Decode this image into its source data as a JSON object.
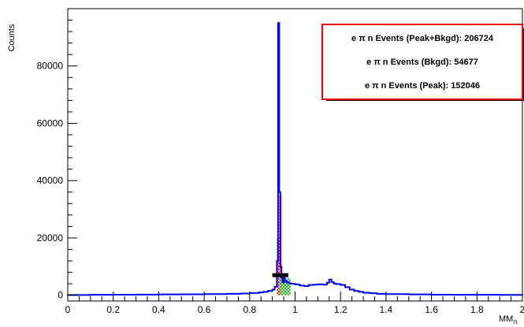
{
  "chart_data": {
    "type": "histogram",
    "title": "",
    "xlabel": "MM",
    "xlabel_subscript": "π",
    "ylabel": "Counts",
    "xlim": [
      0,
      2
    ],
    "ylim": [
      -2000,
      100000
    ],
    "x_ticks": [
      0,
      0.2,
      0.4,
      0.6,
      0.8,
      1,
      1.2,
      1.4,
      1.6,
      1.8,
      2
    ],
    "x_tick_labels": [
      "0",
      "0.2",
      "0.4",
      "0.6",
      "0.8",
      "1",
      "1.2",
      "1.4",
      "1.6",
      "1.8",
      "2"
    ],
    "y_ticks": [
      0,
      20000,
      40000,
      60000,
      80000
    ],
    "y_tick_labels": [
      "0",
      "20000",
      "40000",
      "60000",
      "80000"
    ],
    "grid": false,
    "series": [
      {
        "kind": "step-outline",
        "color": "#0000ee",
        "x": [
          0.0,
          0.1,
          0.2,
          0.3,
          0.4,
          0.5,
          0.6,
          0.7,
          0.76,
          0.8,
          0.84,
          0.86,
          0.88,
          0.9,
          0.91,
          0.92,
          0.925,
          0.93,
          0.935,
          0.94,
          0.945,
          0.95,
          0.955,
          0.96,
          0.965,
          0.97,
          0.975,
          0.98,
          1.0,
          1.02,
          1.04,
          1.06,
          1.08,
          1.1,
          1.12,
          1.14,
          1.15,
          1.16,
          1.17,
          1.18,
          1.2,
          1.22,
          1.24,
          1.26,
          1.28,
          1.3,
          1.33,
          1.36,
          1.4,
          1.5,
          1.6,
          1.7,
          1.8,
          1.9,
          2.0
        ],
        "y": [
          100,
          150,
          200,
          250,
          300,
          350,
          400,
          500,
          600,
          800,
          1000,
          1200,
          1500,
          2000,
          3000,
          12000,
          95000,
          36000,
          10000,
          6000,
          4500,
          6000,
          5000,
          4800,
          4600,
          4400,
          4200,
          4000,
          3800,
          3400,
          3200,
          3600,
          3700,
          3800,
          3700,
          4400,
          5500,
          4600,
          4100,
          3900,
          3600,
          2800,
          2000,
          1500,
          1200,
          900,
          700,
          500,
          400,
          300,
          200,
          180,
          150,
          120,
          100
        ]
      }
    ],
    "regions": [
      {
        "name": "peak",
        "pattern": "red crosshatch",
        "color": "#ee0000",
        "x": [
          0.92,
          0.94
        ],
        "heights": [
          20000,
          35000
        ]
      },
      {
        "name": "bkgd",
        "pattern": "green crosshatch",
        "color": "#22aa22",
        "x": [
          0.93,
          0.98
        ],
        "level": 6000
      }
    ],
    "markers": [
      {
        "kind": "band",
        "color": "#000000",
        "x": [
          0.9,
          0.97
        ],
        "y": 7000
      }
    ],
    "legend": {
      "placement": "top-right",
      "border_color": "#ee0000",
      "entries": [
        "e π n Events (Peak+Bkgd): 206724",
        "e π n Events (Bkgd): 54677",
        "e π n Events (Peak): 152046"
      ]
    }
  }
}
